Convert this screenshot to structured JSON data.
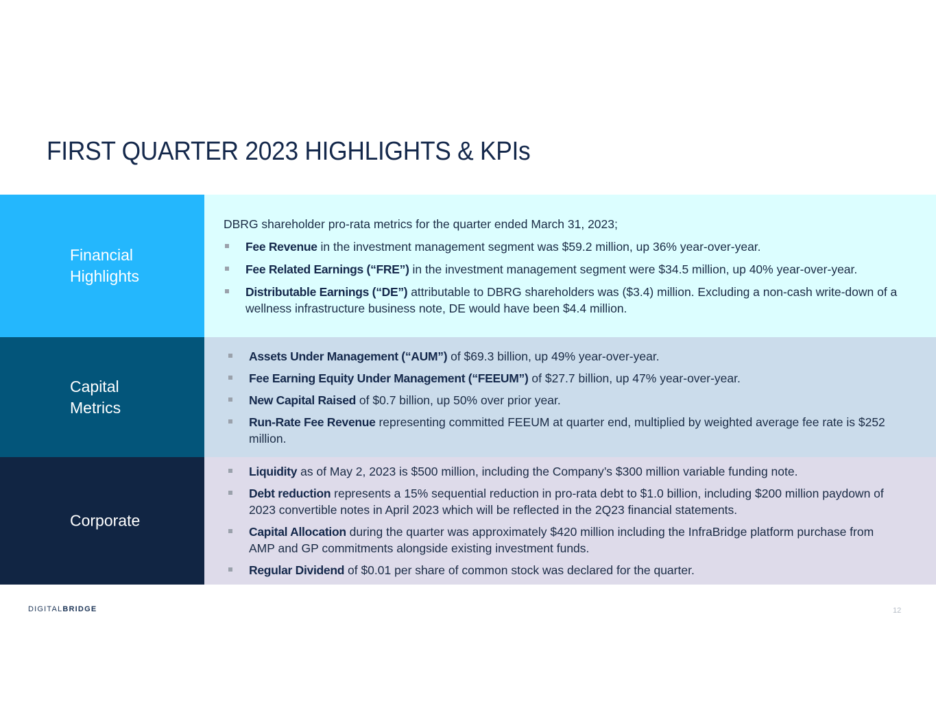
{
  "title": "FIRST QUARTER 2023 HIGHLIGHTS & KPIs",
  "sections": {
    "financial": {
      "label": "Financial\nHighlights",
      "intro": "DBRG shareholder pro-rata metrics for the quarter ended March 31, 2023;",
      "bullets": [
        {
          "bold": "Fee Revenue",
          "text": " in the investment management segment was $59.2 million, up 36% year-over-year."
        },
        {
          "bold": "Fee Related Earnings (“FRE”)",
          "text": " in the investment management segment were $34.5 million, up 40% year-over-year."
        },
        {
          "bold": "Distributable Earnings (“DE”)",
          "text": " attributable to DBRG shareholders was ($3.4) million.  Excluding a non-cash write-down of a wellness infrastructure business note, DE would have been $4.4 million."
        }
      ]
    },
    "capital": {
      "label": "Capital\nMetrics",
      "bullets": [
        {
          "bold": "Assets Under Management (“AUM”)",
          "text": " of $69.3 billion, up 49% year-over-year."
        },
        {
          "bold": "Fee Earning Equity Under Management (“FEEUM”)",
          "text": " of $27.7 billion, up 47% year-over-year."
        },
        {
          "bold": "New Capital Raised",
          "text": " of $0.7 billion, up 50% over prior year."
        },
        {
          "bold": "Run-Rate Fee Revenue",
          "text": " representing committed FEEUM at quarter end, multiplied by weighted average fee rate is $252 million."
        }
      ]
    },
    "corporate": {
      "label": "Corporate",
      "bullets": [
        {
          "bold": "Liquidity",
          "text": " as of May 2, 2023 is $500 million, including the Company’s $300 million variable funding note."
        },
        {
          "bold": "Debt reduction",
          "text": " represents a 15% sequential reduction in pro-rata debt to $1.0 billion, including $200 million paydown of 2023 convertible notes in April 2023 which will be reflected in the 2Q23 financial statements."
        },
        {
          "bold": "Capital Allocation",
          "text": " during the quarter was approximately $420 million including the InfraBridge platform purchase from AMP and GP commitments alongside existing investment funds."
        },
        {
          "bold": "Regular Dividend",
          "text": " of $0.01 per share of common stock was declared for the quarter."
        }
      ]
    }
  },
  "footer": {
    "logo_part1": "DIGITAL",
    "logo_part2": "BRIDGE",
    "page_number": "12"
  },
  "colors": {
    "financial_label_bg": "#24b7fd",
    "financial_content_bg": "#dcfeff",
    "capital_label_bg": "#03557a",
    "capital_content_bg": "#cbdceb",
    "corporate_label_bg": "#112543",
    "corporate_content_bg": "#dedbea"
  }
}
